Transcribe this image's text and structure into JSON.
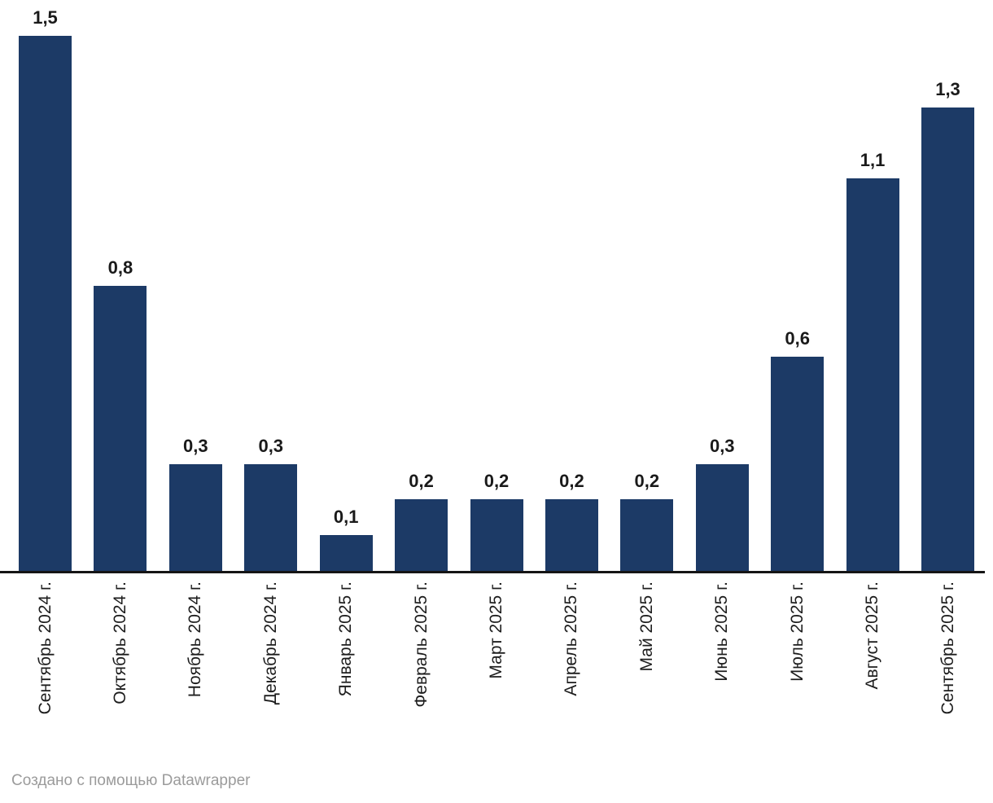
{
  "chart_data": {
    "type": "bar",
    "categories": [
      "Сентябрь 2024 г.",
      "Октябрь 2024 г.",
      "Ноябрь 2024 г.",
      "Декабрь 2024 г.",
      "Январь 2025 г.",
      "Февраль 2025 г.",
      "Март 2025 г.",
      "Апрель 2025 г.",
      "Май 2025 г.",
      "Июнь 2025 г.",
      "Июль 2025 г.",
      "Август 2025 г.",
      "Сентябрь 2025 г."
    ],
    "values": [
      1.5,
      0.8,
      0.3,
      0.3,
      0.1,
      0.2,
      0.2,
      0.2,
      0.2,
      0.3,
      0.6,
      1.1,
      1.3
    ],
    "value_labels": [
      "1,5",
      "0,8",
      "0,3",
      "0,3",
      "0,1",
      "0,2",
      "0,2",
      "0,2",
      "0,2",
      "0,3",
      "0,6",
      "1,1",
      "1,3"
    ],
    "title": "",
    "xlabel": "",
    "ylabel": "",
    "ylim": [
      0,
      1.5
    ],
    "grid": false,
    "legend": false,
    "bar_color": "#1c3a66",
    "value_label_color": "#1a1a1a",
    "tick_label_color": "#1d1d1d",
    "axis_line_color": "#151515",
    "background_color": "#ffffff",
    "decimal_separator": ","
  },
  "footer": {
    "attribution": "Создано с помощью Datawrapper"
  }
}
